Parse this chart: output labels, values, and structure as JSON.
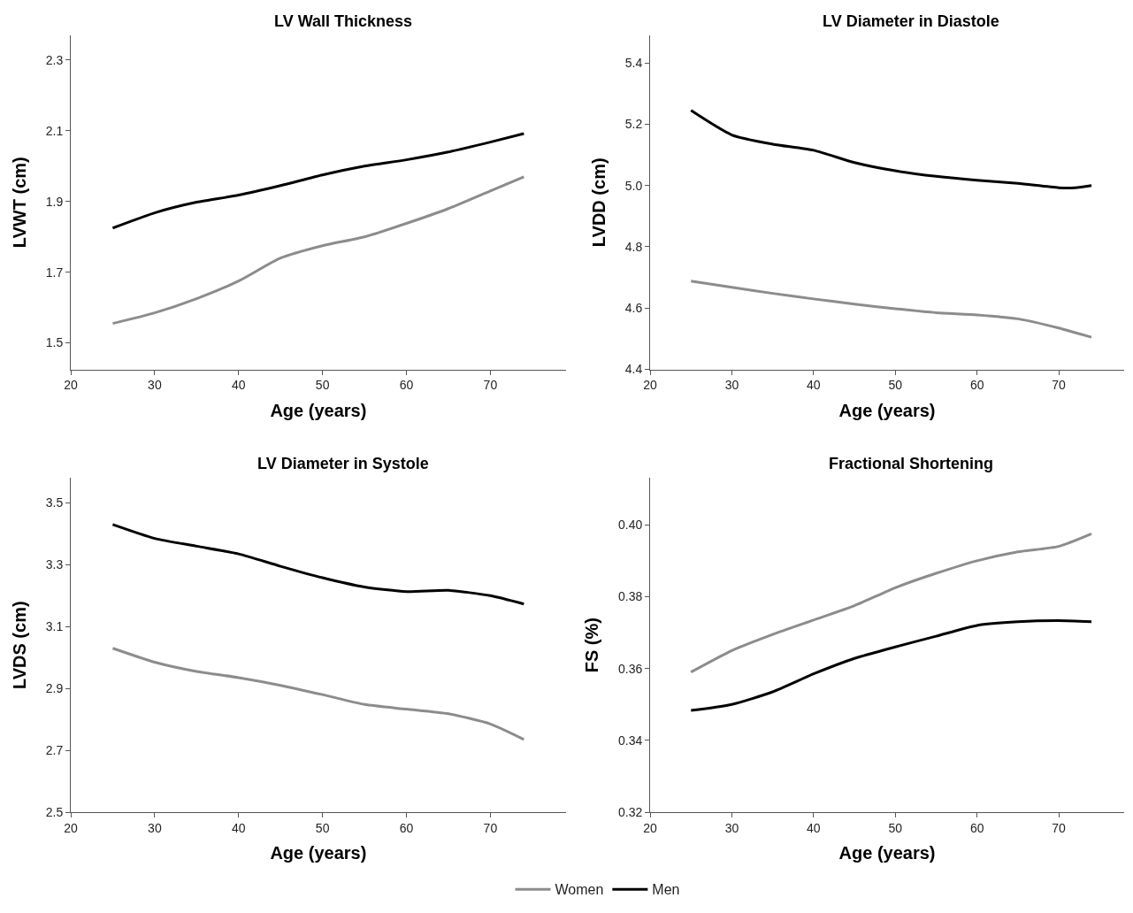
{
  "chart_data": [
    {
      "type": "line",
      "title": "LV Wall Thickness",
      "xlabel": "Age (years)",
      "ylabel": "LVWT (cm)",
      "xlim": [
        20,
        79
      ],
      "xticks": [
        20,
        30,
        40,
        50,
        60,
        70
      ],
      "ylim": [
        1.425,
        2.37
      ],
      "yticks": [
        1.5,
        1.7,
        1.9,
        2.1,
        2.3
      ],
      "legend": "bottom",
      "x": [
        25,
        30,
        35,
        40,
        45,
        50,
        55,
        60,
        65,
        70,
        74
      ],
      "series": [
        {
          "name": "Women",
          "color": "#8c8c8c",
          "values": [
            1.555,
            1.585,
            1.625,
            1.675,
            1.74,
            1.775,
            1.8,
            1.838,
            1.88,
            1.93,
            1.97
          ]
        },
        {
          "name": "Men",
          "color": "#000000",
          "values": [
            1.825,
            1.868,
            1.898,
            1.918,
            1.945,
            1.975,
            2.0,
            2.018,
            2.04,
            2.068,
            2.092
          ]
        }
      ]
    },
    {
      "type": "line",
      "title": "LV Diameter in Diastole",
      "xlabel": "Age (years)",
      "ylabel": "LVDD (cm)",
      "xlim": [
        20,
        78
      ],
      "xticks": [
        20,
        30,
        40,
        50,
        60,
        70
      ],
      "ylim": [
        4.4,
        5.49
      ],
      "yticks": [
        {
          "value": 4.4,
          "label": "4.4"
        },
        {
          "value": 4.6,
          "label": "4.6"
        },
        {
          "value": 4.8,
          "label": "4.8"
        },
        {
          "value": 5.0,
          "label": "5.0"
        },
        {
          "value": 5.2,
          "label": "5.2"
        },
        {
          "value": 5.4,
          "label": "5.4"
        }
      ],
      "x": [
        25,
        30,
        35,
        40,
        45,
        50,
        55,
        60,
        65,
        70,
        72,
        74
      ],
      "series": [
        {
          "color": "#8c8c8c",
          "values": [
            4.688,
            4.668,
            4.648,
            4.63,
            4.613,
            4.598,
            4.585,
            4.578,
            4.565,
            4.535,
            4.52,
            4.505
          ]
        },
        {
          "color": "#000000",
          "values": [
            5.245,
            5.165,
            5.135,
            5.115,
            5.075,
            5.048,
            5.03,
            5.017,
            5.007,
            4.993,
            4.993,
            5.0
          ]
        }
      ]
    },
    {
      "type": "line",
      "title": "LV Diameter in Systole",
      "xlabel": "Age (years)",
      "ylabel": "LVDS (cm)",
      "xlim": [
        20,
        79
      ],
      "xticks": [
        20,
        30,
        40,
        50,
        60,
        70
      ],
      "ylim": [
        2.5,
        3.58
      ],
      "yticks": [
        2.5,
        2.7,
        2.9,
        3.1,
        3.3,
        3.5
      ],
      "x": [
        25,
        30,
        35,
        40,
        45,
        50,
        55,
        60,
        65,
        70,
        74
      ],
      "series": [
        {
          "color": "#8c8c8c",
          "values": [
            3.03,
            2.985,
            2.955,
            2.935,
            2.91,
            2.88,
            2.848,
            2.833,
            2.818,
            2.785,
            2.735
          ]
        },
        {
          "color": "#000000",
          "values": [
            3.43,
            3.385,
            3.36,
            3.335,
            3.295,
            3.258,
            3.228,
            3.213,
            3.217,
            3.2,
            3.173
          ]
        }
      ]
    },
    {
      "type": "line",
      "title": "Fractional Shortening",
      "xlabel": "Age (years)",
      "ylabel": "FS (%)",
      "xlim": [
        20,
        78
      ],
      "xticks": [
        20,
        30,
        40,
        50,
        60,
        70
      ],
      "ylim": [
        0.32,
        0.413
      ],
      "yticks": [
        {
          "value": 0.32,
          "label": "0.32"
        },
        {
          "value": 0.34,
          "label": "0.34"
        },
        {
          "value": 0.36,
          "label": "0.36"
        },
        {
          "value": 0.38,
          "label": "0.38"
        },
        {
          "value": 0.4,
          "label": "0.40"
        }
      ],
      "x": [
        25,
        30,
        35,
        40,
        45,
        50,
        55,
        60,
        65,
        70,
        74
      ],
      "series": [
        {
          "color": "#8c8c8c",
          "values": [
            0.359,
            0.365,
            0.3695,
            0.3735,
            0.3775,
            0.3825,
            0.3865,
            0.39,
            0.3925,
            0.394,
            0.3975
          ]
        },
        {
          "color": "#000000",
          "values": [
            0.3483,
            0.35,
            0.3535,
            0.3585,
            0.3628,
            0.366,
            0.369,
            0.372,
            0.373,
            0.3733,
            0.373
          ]
        }
      ]
    }
  ]
}
